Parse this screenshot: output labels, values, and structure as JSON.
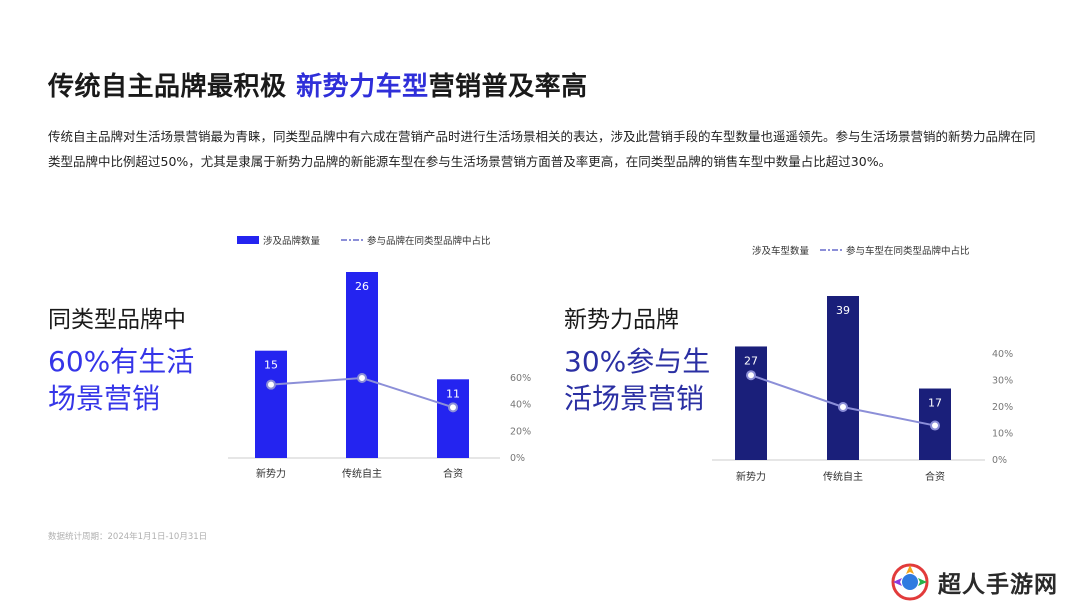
{
  "header": {
    "title_part1": "传统自主品牌最积极",
    "title_part2": "新势力车型",
    "title_part3": "营销普及率高"
  },
  "description": "传统自主品牌对生活场景营销最为青睐，同类型品牌中有六成在营销产品时进行生活场景相关的表达，涉及此营销手段的车型数量也遥遥领先。参与生活场景营销的新势力品牌在同类型品牌中比例超过50%，尤其是隶属于新势力品牌的新能源车型在参与生活场景营销方面普及率更高，在同类型品牌的销售车型中数量占比超过30%。",
  "left_panel": {
    "label": "同类型品牌中",
    "stat": "60%有生活场景营销"
  },
  "right_panel": {
    "label": "新势力品牌",
    "stat": "30%参与生活场景营销"
  },
  "source": "数据统计周期：2024年1月1日-10月31日",
  "logo": {
    "text": "超人手游网"
  },
  "colors": {
    "left_bar": "#2424f0",
    "right_bar": "#1a1f7a",
    "line": "#8c8fd8",
    "accent": "#2f2fd9"
  },
  "chart_data": [
    {
      "type": "bar",
      "categories": [
        "新势力",
        "传统自主",
        "合资"
      ],
      "series": [
        {
          "name": "涉及品牌数量",
          "values": [
            15,
            26,
            11
          ],
          "kind": "bar"
        },
        {
          "name": "参与品牌在同类型品牌中占比",
          "values": [
            55,
            60,
            38
          ],
          "kind": "line",
          "unit": "%"
        }
      ],
      "y2_ticks": [
        "0%",
        "20%",
        "40%",
        "60%"
      ],
      "y2lim": [
        0,
        60
      ],
      "ylim": [
        0,
        26
      ],
      "legend_position": "top-left"
    },
    {
      "type": "bar",
      "categories": [
        "新势力",
        "传统自主",
        "合资"
      ],
      "series": [
        {
          "name": "涉及车型数量",
          "values": [
            27,
            39,
            17
          ],
          "kind": "bar"
        },
        {
          "name": "参与车型在同类型品牌中占比",
          "values": [
            32,
            20,
            13
          ],
          "kind": "line",
          "unit": "%"
        }
      ],
      "y2_ticks": [
        "0%",
        "10%",
        "20%",
        "30%",
        "40%"
      ],
      "y2lim": [
        0,
        40
      ],
      "ylim": [
        0,
        39
      ],
      "legend_position": "top-right"
    }
  ]
}
